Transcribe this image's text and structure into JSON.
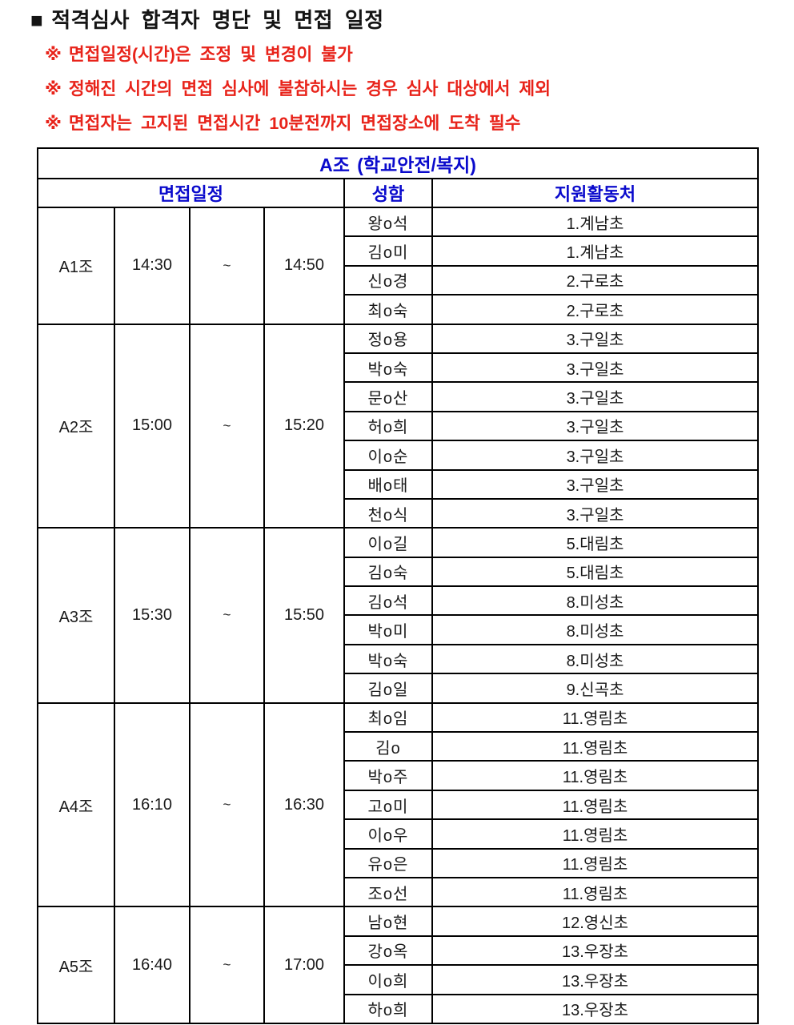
{
  "page": {
    "title_bullet": "■",
    "title_text": "적격심사 합격자 명단 및 면접 일정"
  },
  "notes": [
    {
      "marker": "※",
      "text": "면접일정(시간)은 조정 및 변경이 불가"
    },
    {
      "marker": "※",
      "text": "정해진 시간의 면접 심사에 불참하시는 경우 심사 대상에서 제외"
    },
    {
      "marker": "※",
      "text": "면접자는 고지된 면접시간 10분전까지 면접장소에 도착 필수"
    }
  ],
  "colors": {
    "note_red": "#e8231a",
    "header_blue": "#0a0acc",
    "border_black": "#000000"
  },
  "table": {
    "group_title": "A조 (학교안전/복지)",
    "columns": {
      "schedule": "면접일정",
      "name": "성함",
      "place": "지원활동처"
    },
    "tilde": "~",
    "sections": [
      {
        "group": "A1조",
        "start": "14:30",
        "end": "14:50",
        "members": [
          {
            "name": "왕o석",
            "place": "1.계남초"
          },
          {
            "name": "김o미",
            "place": "1.계남초"
          },
          {
            "name": "신o경",
            "place": "2.구로초"
          },
          {
            "name": "최o숙",
            "place": "2.구로초"
          }
        ]
      },
      {
        "group": "A2조",
        "start": "15:00",
        "end": "15:20",
        "members": [
          {
            "name": "정o용",
            "place": "3.구일초"
          },
          {
            "name": "박o숙",
            "place": "3.구일초"
          },
          {
            "name": "문o산",
            "place": "3.구일초"
          },
          {
            "name": "허o희",
            "place": "3.구일초"
          },
          {
            "name": "이o순",
            "place": "3.구일초"
          },
          {
            "name": "배o태",
            "place": "3.구일초"
          },
          {
            "name": "천o식",
            "place": "3.구일초"
          }
        ]
      },
      {
        "group": "A3조",
        "start": "15:30",
        "end": "15:50",
        "members": [
          {
            "name": "이o길",
            "place": "5.대림초"
          },
          {
            "name": "김o숙",
            "place": "5.대림초"
          },
          {
            "name": "김o석",
            "place": "8.미성초"
          },
          {
            "name": "박o미",
            "place": "8.미성초"
          },
          {
            "name": "박o숙",
            "place": "8.미성초"
          },
          {
            "name": "김o일",
            "place": "9.신곡초"
          }
        ]
      },
      {
        "group": "A4조",
        "start": "16:10",
        "end": "16:30",
        "members": [
          {
            "name": "최o임",
            "place": "11.영림초"
          },
          {
            "name": "김o",
            "place": "11.영림초"
          },
          {
            "name": "박o주",
            "place": "11.영림초"
          },
          {
            "name": "고o미",
            "place": "11.영림초"
          },
          {
            "name": "이o우",
            "place": "11.영림초"
          },
          {
            "name": "유o은",
            "place": "11.영림초"
          },
          {
            "name": "조o선",
            "place": "11.영림초"
          }
        ]
      },
      {
        "group": "A5조",
        "start": "16:40",
        "end": "17:00",
        "members": [
          {
            "name": "남o현",
            "place": "12.영신초"
          },
          {
            "name": "강o옥",
            "place": "13.우장초"
          },
          {
            "name": "이o희",
            "place": "13.우장초"
          },
          {
            "name": "하o희",
            "place": "13.우장초"
          }
        ]
      }
    ]
  }
}
